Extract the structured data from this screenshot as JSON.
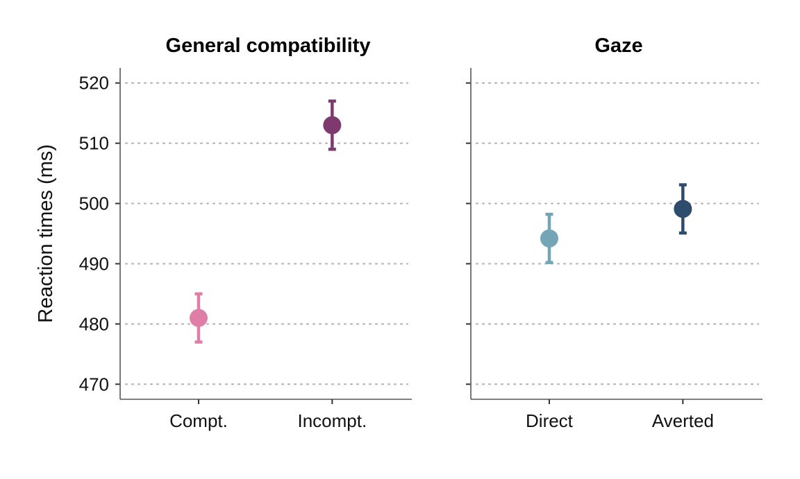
{
  "chart_data": {
    "type": "scatter",
    "ylabel": "Reaction times (ms)",
    "ylim": [
      467.5,
      522.5
    ],
    "yticks": [
      470,
      480,
      490,
      500,
      510,
      520
    ],
    "grid": "horizontal-dotted",
    "panels": [
      {
        "title": "General compatibility",
        "categories": [
          "Compt.",
          "Incompt."
        ],
        "points": [
          {
            "category": "Compt.",
            "value": 481,
            "lower": 477,
            "upper": 485,
            "color": "#df7fa8"
          },
          {
            "category": "Incompt.",
            "value": 513,
            "lower": 509,
            "upper": 517,
            "color": "#7e3a6e"
          }
        ]
      },
      {
        "title": "Gaze",
        "categories": [
          "Direct",
          "Averted"
        ],
        "points": [
          {
            "category": "Direct",
            "value": 494.2,
            "lower": 490.2,
            "upper": 498.2,
            "color": "#74a5b6"
          },
          {
            "category": "Averted",
            "value": 499.1,
            "lower": 495.1,
            "upper": 503.1,
            "color": "#2e4d6e"
          }
        ]
      }
    ]
  }
}
